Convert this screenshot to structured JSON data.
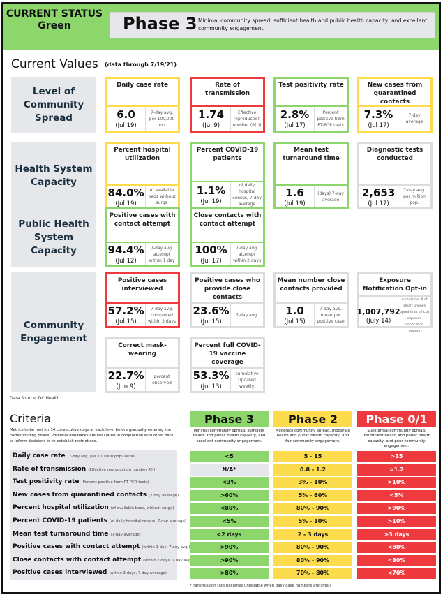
{
  "colors": {
    "green": "#8dd66c",
    "yellow": "#fcdc4c",
    "red": "#ee3a3f",
    "gray": "#dcdcdc"
  },
  "header": {
    "status_line1": "CURRENT STATUS",
    "status_line2": "Green",
    "phase": "Phase 3",
    "description": "Minimal community spread, sufficient health and public health capacity, and excellent community engagement."
  },
  "current_values": {
    "title": "Current Values",
    "subtitle": "(data through 7/19/21)"
  },
  "categories": [
    "Level of Community Spread",
    "Health System Capacity",
    "Public Health System Capacity",
    "Community Engagement"
  ],
  "cards": [
    {
      "title": "Daily case rate",
      "value": "6.0",
      "date": "(Jul 19)",
      "note": "7-day avg. per 100,000 pop.",
      "status": "yellow"
    },
    {
      "title": "Rate of transmission",
      "value": "1.74",
      "date": "(Jul 9)",
      "note": "Effective reproduction number (R(t))",
      "status": "red"
    },
    {
      "title": "Test positivity rate",
      "value": "2.8%",
      "date": "(Jul 17)",
      "note": "Percent positive from RT-PCR tests",
      "status": "green"
    },
    {
      "title": "New cases from quarantined contacts",
      "value": "7.3%",
      "date": "(Jul 17)",
      "note": "7-day average",
      "status": "yellow"
    },
    {
      "title": "Percent hospital utilization",
      "value": "84.0%",
      "date": "(Jul 19)",
      "note": "of available beds without surge",
      "status": "yellow"
    },
    {
      "title": "Percent COVID-19 patients",
      "value": "1.1%",
      "date": "(Jul 19)",
      "note": "of daily hospital census, 7-day average",
      "status": "green"
    },
    {
      "title": "Mean test turnaround time",
      "value": "1.6",
      "date": "(Jul 19)",
      "note": "(days) 7-day average",
      "status": "green"
    },
    {
      "title": "Diagnostic tests conducted",
      "value": "2,653",
      "date": "(Jul 17)",
      "note": "7-day avg. per million pop.",
      "status": "gray"
    },
    {
      "title": "Positive cases with contact attempt",
      "value": "94.4%",
      "date": "(Jul 12)",
      "note": "7-day avg. attempt within 1 day",
      "status": "green"
    },
    {
      "title": "Close contacts with contact attempt",
      "value": "100%",
      "date": "(Jul 17)",
      "note": "7-day avg. attempt within 2 days",
      "status": "green"
    },
    {
      "title": "Positive cases interviewed",
      "value": "57.2%",
      "date": "(Jul 15)",
      "note": "7-day avg. completed within 3 days",
      "status": "red"
    },
    {
      "title": "Positive cases who provide close contacts",
      "value": "23.6%",
      "date": "(Jul 15)",
      "note": "7-day avg.",
      "status": "gray"
    },
    {
      "title": "Mean number close contacts provided",
      "value": "1.0",
      "date": "(Jul 15)",
      "note": "7-day avg. mean per positive case",
      "status": "gray"
    },
    {
      "title": "Exposure Notification Opt-in",
      "value": "1,007,792",
      "date": "(July 14)",
      "note": "cumulative # of smart phones opted-in to official exposure notification system",
      "status": "gray"
    },
    {
      "title": "Correct mask-wearing",
      "value": "22.7%",
      "date": "(Jun 9)",
      "note": "percent observed",
      "status": "gray"
    },
    {
      "title": "Percent full COVID-19 vaccine coverage",
      "value": "53.3%",
      "date": "(Jul 13)",
      "note": "cumulative Updated weekly.",
      "status": "gray"
    }
  ],
  "data_source": "Data Source: DC Health",
  "criteria": {
    "title": "Criteria",
    "description": "Metrics to be met for 14 consecutive days at each level before gradually entering the corresponding phase. Potential dial-backs are evaluated in conjunction with other data to inform decisions to re-establish restrictions.",
    "phases": [
      {
        "name": "Phase 3",
        "description": "Minimal community spread, sufficient health and public health capacity, and excellent community engagement.",
        "color": "green"
      },
      {
        "name": "Phase 2",
        "description": "Moderate community spread, moderate health and public health capacity, and fair community engagement.",
        "color": "yellow"
      },
      {
        "name": "Phase 0/1",
        "description": "Substantial community spread, insufficient health and public health capacity, and poor community engagement.",
        "color": "red"
      }
    ],
    "rows": [
      {
        "label": "Daily case rate",
        "detail": "(7-day avg. per 100,000 population)",
        "values": [
          "<5",
          "5 - 15",
          ">15"
        ]
      },
      {
        "label": "Rate of transmission",
        "detail": "(Effective reproduction number R(t))",
        "values": [
          "N/A*",
          "0.8 - 1.2",
          ">1.2"
        ]
      },
      {
        "label": "Test positivity rate",
        "detail": "(Percent positive from RT-PCR tests)",
        "values": [
          "<3%",
          "3% - 10%",
          ">10%"
        ]
      },
      {
        "label": "New cases from quarantined contacts",
        "detail": "(7 day average)",
        "values": [
          ">60%",
          "5% - 60%",
          "<5%"
        ]
      },
      {
        "label": "Percent hospital utilization",
        "detail": "(of available beds, without surge)",
        "values": [
          "<80%",
          "80% - 90%",
          ">90%"
        ]
      },
      {
        "label": "Percent COVID-19 patients",
        "detail": "(of daily hospital census, 7-day average)",
        "values": [
          "<5%",
          "5% - 10%",
          ">10%"
        ]
      },
      {
        "label": "Mean test turnaround time",
        "detail": "(7-day average)",
        "values": [
          "<2 days",
          "2 - 3 days",
          ">3 days"
        ]
      },
      {
        "label": "Positive cases with contact attempt",
        "detail": "(within 1 day, 7 day avg.)",
        "values": [
          ">90%",
          "80% - 90%",
          "<80%"
        ]
      },
      {
        "label": "Close contacts with contact attempt",
        "detail": "(within 2 days, 7 day avg.)",
        "values": [
          ">90%",
          "80% - 90%",
          "<80%"
        ]
      },
      {
        "label": "Positive cases interviewed",
        "detail": "(within 3 days, 7-day average)",
        "values": [
          ">80%",
          "70% - 80%",
          "<70%"
        ]
      }
    ],
    "footnote": "*Transmission rate becomes unreliable when daily case numbers are small"
  }
}
